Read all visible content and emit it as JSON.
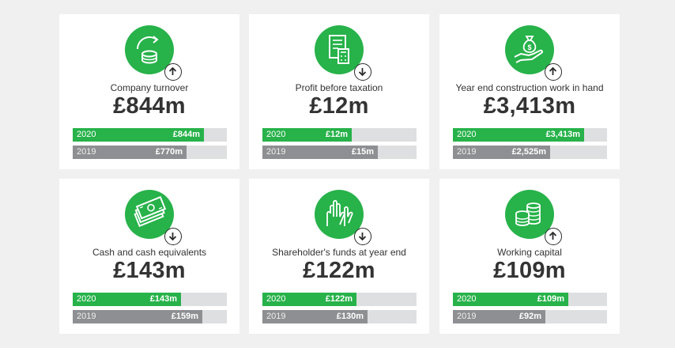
{
  "colors": {
    "accent": "#27b24a",
    "bar_2020": "#27b24a",
    "bar_2019": "#8e8f92",
    "bar_track": "#dedfe0",
    "card_bg": "#ffffff",
    "page_bg": "#f0f0f0",
    "text": "#333333"
  },
  "cards": [
    {
      "label": "Company turnover",
      "value": "£844m",
      "icon": "coins-refresh-icon",
      "trend": "up-arrow-icon",
      "bars": [
        {
          "year": "2020",
          "amount": "£844m",
          "fraction": 0.85
        },
        {
          "year": "2019",
          "amount": "£770m",
          "fraction": 0.74
        }
      ]
    },
    {
      "label": "Profit before taxation",
      "value": "£12m",
      "icon": "document-calculator-icon",
      "trend": "down-arrow-icon",
      "bars": [
        {
          "year": "2020",
          "amount": "£12m",
          "fraction": 0.58
        },
        {
          "year": "2019",
          "amount": "£15m",
          "fraction": 0.75
        }
      ]
    },
    {
      "label": "Year end construction work in hand",
      "value": "£3,413m",
      "icon": "hand-money-bag-icon",
      "trend": "up-arrow-icon",
      "bars": [
        {
          "year": "2020",
          "amount": "£3,413m",
          "fraction": 0.85
        },
        {
          "year": "2019",
          "amount": "£2,525m",
          "fraction": 0.63
        }
      ]
    },
    {
      "label": "Cash and cash equivalents",
      "value": "£143m",
      "icon": "banknotes-icon",
      "trend": "down-arrow-icon",
      "bars": [
        {
          "year": "2020",
          "amount": "£143m",
          "fraction": 0.7
        },
        {
          "year": "2019",
          "amount": "£159m",
          "fraction": 0.84
        }
      ]
    },
    {
      "label": "Shareholder's funds at year end",
      "value": "£122m",
      "icon": "raised-hands-icon",
      "trend": "down-arrow-icon",
      "bars": [
        {
          "year": "2020",
          "amount": "£122m",
          "fraction": 0.61
        },
        {
          "year": "2019",
          "amount": "£130m",
          "fraction": 0.68
        }
      ]
    },
    {
      "label": "Working capital",
      "value": "£109m",
      "icon": "coin-stacks-icon",
      "trend": "up-arrow-icon",
      "bars": [
        {
          "year": "2020",
          "amount": "£109m",
          "fraction": 0.75
        },
        {
          "year": "2019",
          "amount": "£92m",
          "fraction": 0.6
        }
      ]
    }
  ]
}
